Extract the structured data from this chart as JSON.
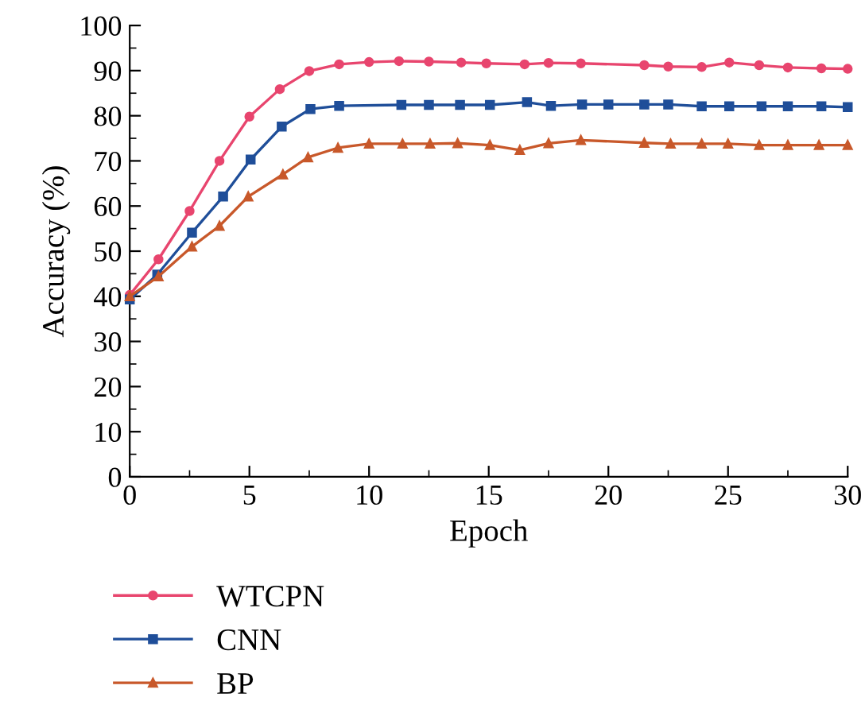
{
  "chart_data": {
    "type": "line",
    "xlabel": "Epoch",
    "ylabel": "Accuracy (%)",
    "xlim": [
      0,
      30
    ],
    "ylim": [
      0,
      100
    ],
    "xticks": [
      0,
      5,
      10,
      15,
      20,
      25,
      30
    ],
    "yticks": [
      0,
      10,
      20,
      30,
      40,
      50,
      60,
      70,
      80,
      90,
      100
    ],
    "grid": false,
    "legend": "bottom",
    "series": [
      {
        "name": "WTCPN",
        "color": "#e8456e",
        "marker": "circle",
        "x": [
          0,
          1.2,
          2.5,
          3.75,
          5,
          6.27,
          7.5,
          8.75,
          10,
          11.25,
          12.5,
          13.85,
          14.9,
          16.5,
          17.5,
          18.85,
          21.5,
          22.5,
          23.9,
          25.05,
          26.3,
          27.5,
          28.9,
          30
        ],
        "values": [
          40.3,
          48.2,
          58.9,
          70,
          79.8,
          85.9,
          89.9,
          91.4,
          91.9,
          92.1,
          92.0,
          91.8,
          91.6,
          91.4,
          91.7,
          91.6,
          91.2,
          90.9,
          90.8,
          91.8,
          91.2,
          90.7,
          90.5,
          90.4
        ]
      },
      {
        "name": "CNN",
        "color": "#1f4e99",
        "marker": "square",
        "x": [
          0,
          1.15,
          2.6,
          3.9,
          5.05,
          6.35,
          7.55,
          8.75,
          11.35,
          12.5,
          13.8,
          15.05,
          16.6,
          17.6,
          18.9,
          20,
          21.5,
          22.5,
          23.9,
          25.05,
          26.4,
          27.5,
          28.9,
          30
        ],
        "values": [
          39.3,
          44.8,
          54.1,
          62.1,
          70.3,
          77.6,
          81.5,
          82.2,
          82.4,
          82.4,
          82.4,
          82.4,
          83.0,
          82.2,
          82.5,
          82.5,
          82.5,
          82.5,
          82.1,
          82.1,
          82.1,
          82.1,
          82.1,
          81.9
        ]
      },
      {
        "name": "BP",
        "color": "#c8582a",
        "marker": "triangle",
        "x": [
          0,
          1.2,
          2.6,
          3.75,
          4.95,
          6.4,
          7.45,
          8.7,
          10,
          11.4,
          12.55,
          13.7,
          15.05,
          16.3,
          17.5,
          18.85,
          21.5,
          22.6,
          23.9,
          25,
          26.3,
          27.5,
          28.8,
          30
        ],
        "values": [
          40.0,
          44.4,
          51.0,
          55.6,
          62.1,
          67.0,
          70.8,
          72.9,
          73.8,
          73.8,
          73.8,
          73.9,
          73.5,
          72.4,
          73.9,
          74.6,
          74.0,
          73.8,
          73.8,
          73.8,
          73.5,
          73.5,
          73.5,
          73.5
        ]
      }
    ]
  }
}
